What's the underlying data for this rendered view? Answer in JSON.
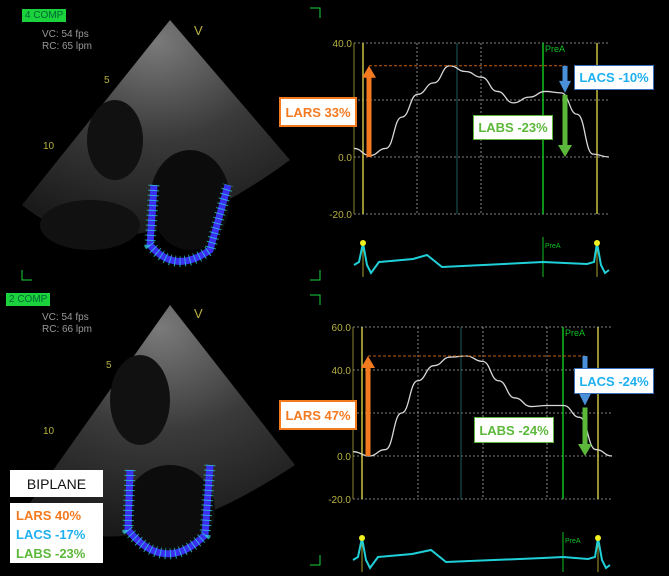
{
  "views": [
    {
      "label": "4 COMP",
      "vc": "VC: 54 fps",
      "rc": "RC: 65 lpm",
      "marker": "V",
      "depth_ticks": [
        "5",
        "10"
      ]
    },
    {
      "label": "2 COMP",
      "vc": "VC: 54 fps",
      "rc": "RC: 66 lpm",
      "marker": "V",
      "depth_ticks": [
        "5",
        "10"
      ]
    }
  ],
  "chart_data": [
    {
      "type": "line",
      "ylim": [
        -20,
        40
      ],
      "yticks": [
        "40.0",
        "0.0",
        "-20.0"
      ],
      "grid": true,
      "marker_label": "PreA",
      "series": [
        {
          "values": [
            3,
            0.5,
            3,
            14,
            22,
            26,
            32,
            30,
            28,
            23,
            19,
            21,
            23,
            22.5,
            15,
            1,
            0
          ]
        }
      ],
      "annotations": {
        "lars": "LARS 33%",
        "lacs": "LACS -10%",
        "labs": "LABS -23%"
      },
      "ecg_label": "PreA"
    },
    {
      "type": "line",
      "ylim": [
        -20,
        60
      ],
      "yticks": [
        "60.0",
        "40.0",
        "0.0",
        "-20.0"
      ],
      "grid": true,
      "marker_label": "PreA",
      "series": [
        {
          "values": [
            2,
            0,
            3,
            20,
            35,
            42,
            46,
            46.5,
            44,
            35,
            27,
            23,
            23.5,
            23.5,
            18,
            3,
            0
          ]
        }
      ],
      "annotations": {
        "lars": "LARS 47%",
        "lacs": "LACS -24%",
        "labs": "LABS -24%"
      },
      "ecg_label": "PreA"
    }
  ],
  "biplane": {
    "title": "BIPLANE",
    "lars": "LARS 40%",
    "lacs": "LACS -17%",
    "labs": "LABS -23%"
  },
  "colors": {
    "lars": "#f47a20",
    "lacs": "#1fb0f0",
    "labs": "#5cb83a",
    "curve": "#d8d8d8",
    "ecg": "#20d0d8"
  }
}
